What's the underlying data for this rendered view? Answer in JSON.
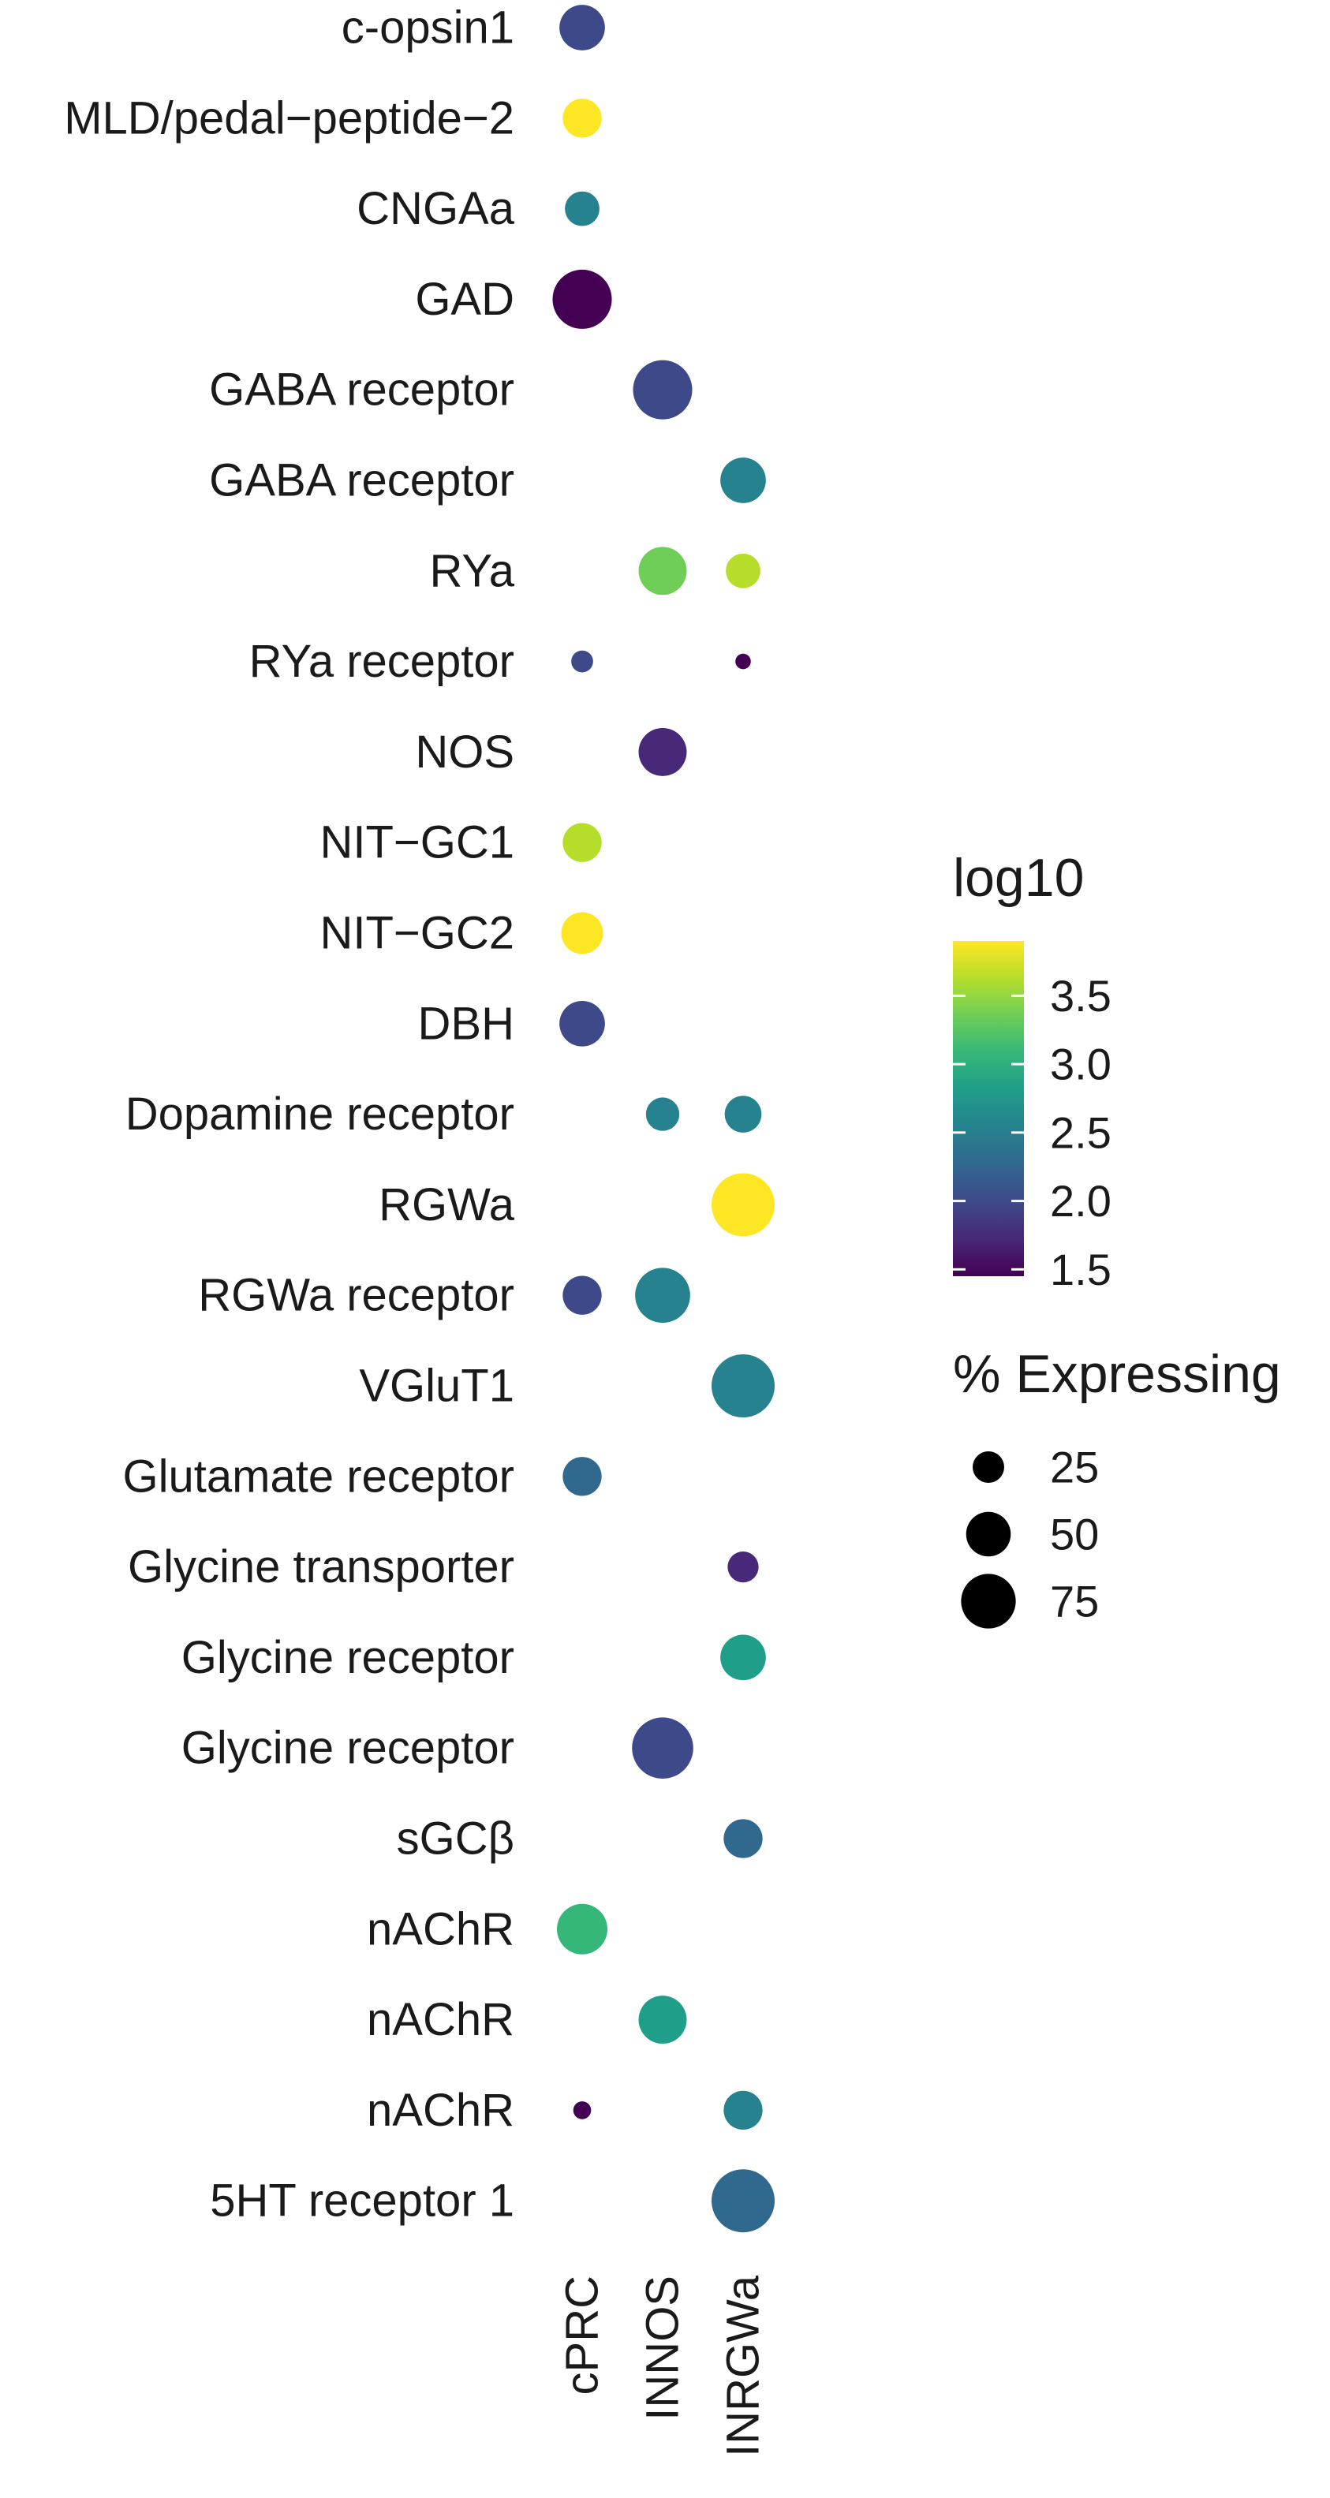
{
  "chart_data": {
    "type": "dot",
    "title": "",
    "xlabel": "",
    "ylabel": "",
    "x_categories": [
      "cPRC",
      "INNOS",
      "INRGWa"
    ],
    "y_categories": [
      "c-opsin1",
      "MLD/pedal−peptide−2",
      "CNGAa",
      "GAD",
      "GABA receptor",
      "GABA receptor",
      "RYa",
      "RYa receptor",
      "NOS",
      "NIT−GC1",
      "NIT−GC2",
      "DBH",
      "Dopamine receptor",
      "RGWa",
      "RGWa receptor",
      "VGluT1",
      "Glutamate receptor",
      "Glycine transporter",
      "Glycine receptor",
      "Glycine receptor",
      "sGCβ",
      "nAChR",
      "nAChR",
      "nAChR",
      "5HT receptor 1"
    ],
    "points": [
      {
        "row": 0,
        "x": "cPRC",
        "pct": 52,
        "log10": 2.0
      },
      {
        "row": 1,
        "x": "cPRC",
        "pct": 38,
        "log10": 3.85
      },
      {
        "row": 2,
        "x": "cPRC",
        "pct": 30,
        "log10": 2.45
      },
      {
        "row": 3,
        "x": "cPRC",
        "pct": 88,
        "log10": 1.5
      },
      {
        "row": 4,
        "x": "INNOS",
        "pct": 88,
        "log10": 2.0
      },
      {
        "row": 5,
        "x": "INRGWa",
        "pct": 52,
        "log10": 2.5
      },
      {
        "row": 6,
        "x": "INNOS",
        "pct": 58,
        "log10": 3.3
      },
      {
        "row": 6,
        "x": "INRGWa",
        "pct": 30,
        "log10": 3.5
      },
      {
        "row": 7,
        "x": "cPRC",
        "pct": 12,
        "log10": 2.0
      },
      {
        "row": 7,
        "x": "INRGWa",
        "pct": 6,
        "log10": 1.5
      },
      {
        "row": 8,
        "x": "INNOS",
        "pct": 58,
        "log10": 1.6
      },
      {
        "row": 9,
        "x": "cPRC",
        "pct": 38,
        "log10": 3.5
      },
      {
        "row": 10,
        "x": "cPRC",
        "pct": 44,
        "log10": 3.85
      },
      {
        "row": 11,
        "x": "cPRC",
        "pct": 52,
        "log10": 1.9
      },
      {
        "row": 12,
        "x": "INNOS",
        "pct": 28,
        "log10": 2.5
      },
      {
        "row": 12,
        "x": "INRGWa",
        "pct": 34,
        "log10": 2.65
      },
      {
        "row": 13,
        "x": "INRGWa",
        "pct": 100,
        "log10": 3.8
      },
      {
        "row": 14,
        "x": "cPRC",
        "pct": 38,
        "log10": 2.1
      },
      {
        "row": 14,
        "x": "INNOS",
        "pct": 76,
        "log10": 2.5
      },
      {
        "row": 15,
        "x": "INRGWa",
        "pct": 100,
        "log10": 2.45
      },
      {
        "row": 16,
        "x": "cPRC",
        "pct": 38,
        "log10": 2.3
      },
      {
        "row": 17,
        "x": "INRGWa",
        "pct": 24,
        "log10": 1.7
      },
      {
        "row": 18,
        "x": "INRGWa",
        "pct": 52,
        "log10": 2.75
      },
      {
        "row": 19,
        "x": "INNOS",
        "pct": 94,
        "log10": 2.0
      },
      {
        "row": 20,
        "x": "INRGWa",
        "pct": 38,
        "log10": 2.2
      },
      {
        "row": 21,
        "x": "cPRC",
        "pct": 64,
        "log10": 2.95
      },
      {
        "row": 22,
        "x": "INNOS",
        "pct": 58,
        "log10": 2.85
      },
      {
        "row": 23,
        "x": "cPRC",
        "pct": 8,
        "log10": 1.5
      },
      {
        "row": 23,
        "x": "INRGWa",
        "pct": 38,
        "log10": 2.5
      },
      {
        "row": 24,
        "x": "INRGWa",
        "pct": 100,
        "log10": 2.2
      }
    ],
    "color_legend": {
      "title": "log10",
      "ticks": [
        "1.5",
        "2.0",
        "2.5",
        "3.0",
        "3.5"
      ],
      "range": [
        1.45,
        3.9
      ],
      "palette": [
        "#440154",
        "#482878",
        "#3e4989",
        "#31688e",
        "#26828e",
        "#1f9e89",
        "#35b779",
        "#6ece58",
        "#b5de2b",
        "#fde725"
      ]
    },
    "size_legend": {
      "title": "% Expressing",
      "entries": [
        {
          "label": "25",
          "pct": 25
        },
        {
          "label": "50",
          "pct": 50
        },
        {
          "label": "75",
          "pct": 75
        }
      ]
    },
    "legend_position": "right"
  }
}
